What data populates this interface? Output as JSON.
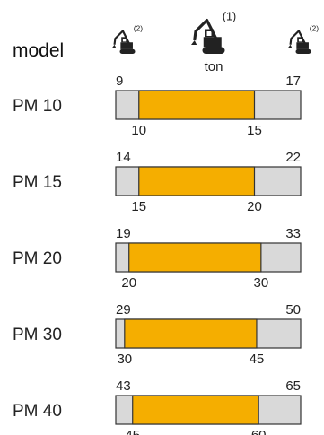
{
  "chart_data": {
    "type": "bar",
    "header_label": "model",
    "unit_label": "ton",
    "icons": [
      {
        "name": "small-excavator-icon",
        "note": "(2)"
      },
      {
        "name": "excavator-icon",
        "note": "(1)"
      },
      {
        "name": "large-excavator-icon",
        "note": "(2)"
      }
    ],
    "rows": [
      {
        "model": "PM 10",
        "outer": [
          9,
          17
        ],
        "inner": [
          10,
          15
        ]
      },
      {
        "model": "PM 15",
        "outer": [
          14,
          22
        ],
        "inner": [
          15,
          20
        ]
      },
      {
        "model": "PM 20",
        "outer": [
          19,
          33
        ],
        "inner": [
          20,
          30
        ]
      },
      {
        "model": "PM 30",
        "outer": [
          29,
          50
        ],
        "inner": [
          30,
          45
        ]
      },
      {
        "model": "PM 40",
        "outer": [
          43,
          65
        ],
        "inner": [
          45,
          60
        ]
      }
    ],
    "colors": {
      "inner": "#F5AE00",
      "outer": "#D9D9D9",
      "stroke": "#333333"
    }
  }
}
